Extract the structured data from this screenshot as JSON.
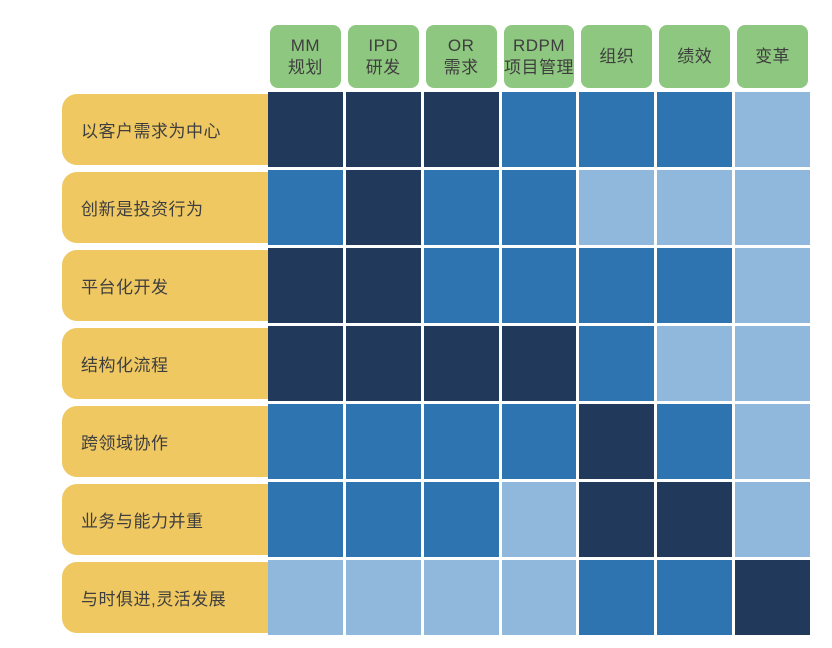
{
  "chart_data": {
    "type": "heatmap",
    "title": "",
    "columns": [
      "MM\n规划",
      "IPD\n研发",
      "OR\n需求",
      "RDPM\n项目管理",
      "组织",
      "绩效",
      "变革"
    ],
    "rows": [
      "以客户需求为中心",
      "创新是投资行为",
      "平台化开发",
      "结构化流程",
      "跨领域协作",
      "业务与能力并重",
      "与时俱进,灵活发展"
    ],
    "values": [
      [
        3,
        3,
        3,
        2,
        2,
        2,
        1
      ],
      [
        2,
        3,
        2,
        2,
        1,
        1,
        1
      ],
      [
        3,
        3,
        2,
        2,
        2,
        2,
        1
      ],
      [
        3,
        3,
        3,
        3,
        2,
        1,
        1
      ],
      [
        2,
        2,
        2,
        2,
        3,
        2,
        1
      ],
      [
        2,
        2,
        2,
        1,
        3,
        3,
        1
      ],
      [
        1,
        1,
        1,
        1,
        2,
        2,
        3
      ]
    ],
    "value_scale": {
      "1": "light",
      "2": "medium",
      "3": "dark"
    },
    "cell_colors": {
      "dark": "#21395B",
      "medium": "#2E74B0",
      "light": "#8FB8DC"
    },
    "legend_position": "none",
    "grid": true
  },
  "style": {
    "column_header_bg": "#8EC77F",
    "row_header_bg": "#EFC862",
    "label_text_color": "#3E3E3E",
    "grid_line_color": "#FFFFFF",
    "background": "#FFFFFF"
  }
}
